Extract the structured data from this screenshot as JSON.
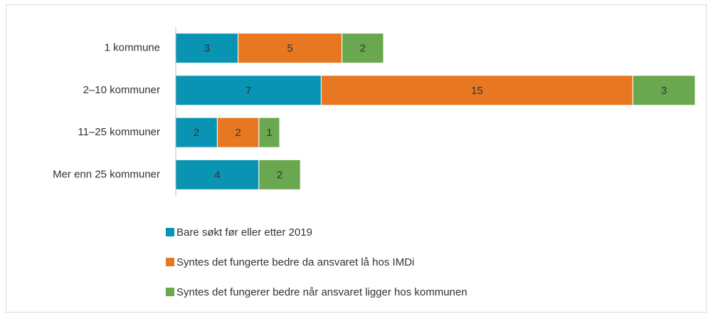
{
  "chart_data": {
    "type": "stacked-bar-horizontal",
    "categories": [
      "1 kommune",
      "2–10 kommuner",
      "11–25 kommuner",
      "Mer enn 25 kommuner"
    ],
    "series": [
      {
        "name": "Bare søkt før eller etter 2019",
        "color": "#0a94b3",
        "values": [
          3,
          7,
          2,
          4
        ]
      },
      {
        "name": "Syntes det fungerte bedre da ansvaret lå hos IMDi",
        "color": "#e87722",
        "values": [
          5,
          15,
          2,
          null
        ]
      },
      {
        "name": "Syntes det fungerer bedre når ansvaret ligger hos kommunen",
        "color": "#6aa84f",
        "values": [
          2,
          3,
          1,
          2
        ]
      }
    ],
    "xlim": [
      0,
      25
    ],
    "legend": "bottom"
  }
}
